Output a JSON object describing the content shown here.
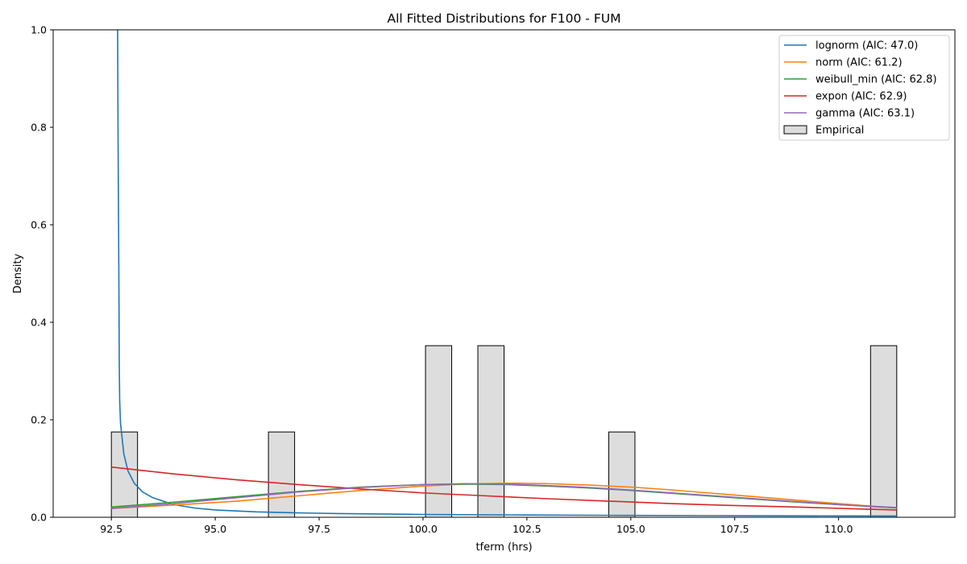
{
  "chart_data": {
    "type": "histogram+line",
    "title": "All Fitted Distributions for F100 - FUM",
    "xlabel": "tferm (hrs)",
    "ylabel": "Density",
    "xlim": [
      91.1,
      112.8
    ],
    "ylim": [
      0,
      1.0
    ],
    "xticks": [
      "92.5",
      "95.0",
      "97.5",
      "100.0",
      "102.5",
      "105.0",
      "107.5",
      "110.0"
    ],
    "xtick_values": [
      92.5,
      95.0,
      97.5,
      100.0,
      102.5,
      105.0,
      107.5,
      110.0
    ],
    "yticks": [
      "0.0",
      "0.2",
      "0.4",
      "0.6",
      "0.8",
      "1.0"
    ],
    "ytick_values": [
      0.0,
      0.2,
      0.4,
      0.6,
      0.8,
      1.0
    ],
    "grid": false,
    "legend_position": "top-right",
    "histogram": {
      "name": "Empirical",
      "fill": "#dddddd",
      "edge": "#000000",
      "bins": [
        {
          "x0": 92.5,
          "x1": 93.13,
          "value": 0.175
        },
        {
          "x0": 96.28,
          "x1": 96.91,
          "value": 0.175
        },
        {
          "x0": 100.06,
          "x1": 100.69,
          "value": 0.352
        },
        {
          "x0": 101.32,
          "x1": 101.95,
          "value": 0.352
        },
        {
          "x0": 104.47,
          "x1": 105.1,
          "value": 0.175
        },
        {
          "x0": 110.77,
          "x1": 111.4,
          "value": 0.352
        }
      ]
    },
    "series": [
      {
        "name": "lognorm (AIC: 47.0)",
        "color": "#1f77b4",
        "x": [
          92.65,
          92.66,
          92.68,
          92.69,
          92.7,
          92.72,
          92.8,
          92.9,
          93.05,
          93.25,
          93.5,
          94.0,
          94.5,
          95.0,
          96.0,
          97.0,
          98.0,
          100.0,
          102.5,
          105.0,
          107.5,
          110.0,
          111.4
        ],
        "y": [
          1.02,
          0.8,
          0.5,
          0.32,
          0.24,
          0.193,
          0.13,
          0.095,
          0.07,
          0.052,
          0.04,
          0.026,
          0.019,
          0.015,
          0.011,
          0.009,
          0.0075,
          0.0058,
          0.0046,
          0.0038,
          0.0032,
          0.0028,
          0.0026
        ]
      },
      {
        "name": "norm (AIC: 61.2)",
        "color": "#ff7f0e",
        "x": [
          92.5,
          94.0,
          95.5,
          97.0,
          98.5,
          100.0,
          101.0,
          102.0,
          103.0,
          104.0,
          105.0,
          106.0,
          107.0,
          108.0,
          109.0,
          110.0,
          111.4
        ],
        "y": [
          0.018,
          0.025,
          0.033,
          0.044,
          0.055,
          0.064,
          0.068,
          0.07,
          0.069,
          0.066,
          0.062,
          0.056,
          0.049,
          0.042,
          0.035,
          0.028,
          0.019
        ]
      },
      {
        "name": "weibull_min (AIC: 62.8)",
        "color": "#2ca02c",
        "x": [
          92.5,
          94.0,
          95.5,
          97.0,
          98.5,
          100.0,
          101.0,
          102.0,
          103.0,
          104.0,
          105.0,
          106.0,
          107.0,
          108.0,
          109.0,
          110.0,
          111.4
        ],
        "y": [
          0.021,
          0.031,
          0.042,
          0.053,
          0.062,
          0.067,
          0.068,
          0.067,
          0.064,
          0.06,
          0.055,
          0.049,
          0.043,
          0.037,
          0.031,
          0.026,
          0.019
        ]
      },
      {
        "name": "expon (AIC: 62.9)",
        "color": "#d62728",
        "x": [
          92.5,
          94.0,
          95.5,
          97.0,
          98.5,
          100.0,
          101.5,
          103.0,
          104.5,
          106.0,
          107.5,
          109.0,
          110.5,
          111.4
        ],
        "y": [
          0.103,
          0.089,
          0.077,
          0.067,
          0.058,
          0.05,
          0.044,
          0.038,
          0.033,
          0.028,
          0.024,
          0.021,
          0.017,
          0.015
        ]
      },
      {
        "name": "gamma (AIC: 63.1)",
        "color": "#9467bd",
        "x": [
          92.5,
          94.0,
          95.5,
          97.0,
          98.5,
          100.0,
          101.0,
          102.0,
          103.0,
          104.0,
          105.0,
          106.0,
          107.0,
          108.0,
          109.0,
          110.0,
          111.4
        ],
        "y": [
          0.018,
          0.028,
          0.04,
          0.052,
          0.061,
          0.067,
          0.069,
          0.068,
          0.065,
          0.061,
          0.056,
          0.05,
          0.044,
          0.038,
          0.032,
          0.026,
          0.02
        ]
      }
    ]
  }
}
